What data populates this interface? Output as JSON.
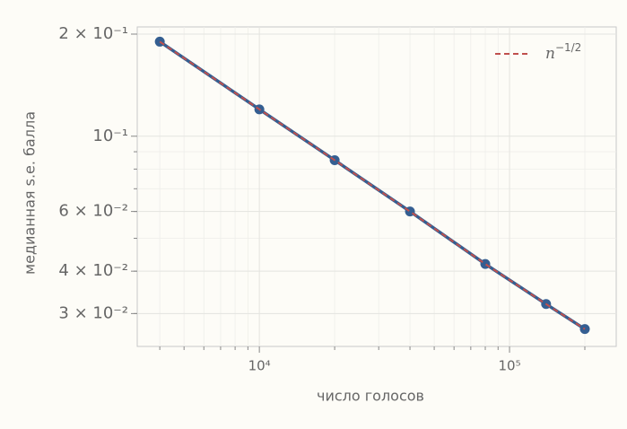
{
  "chart_data": {
    "type": "line",
    "xlabel": "число голосов",
    "ylabel": "медианная s.e. балла",
    "x": [
      4000,
      10000,
      20000,
      40000,
      80000,
      140000,
      200000
    ],
    "series": [
      {
        "color": "#345e91",
        "style": "solid",
        "markers": true,
        "values": [
          0.19,
          0.12,
          0.085,
          0.06,
          0.042,
          0.032,
          0.027
        ]
      },
      {
        "name": "n−1/2",
        "color": "#c0504d",
        "style": "dashed",
        "markers": false,
        "values": [
          0.19,
          0.12,
          0.085,
          0.06,
          0.042,
          0.032,
          0.027
        ]
      }
    ],
    "xscale": "log",
    "yscale": "log",
    "xlim": [
      3250,
      267000
    ],
    "ylim": [
      0.024,
      0.21
    ],
    "xticks": [
      {
        "value": 10000,
        "label": "10⁴"
      },
      {
        "value": 100000,
        "label": "10⁵"
      }
    ],
    "yticks": [
      {
        "value": 0.2,
        "label": "2 × 10⁻¹"
      },
      {
        "value": 0.1,
        "label": "10⁻¹"
      },
      {
        "value": 0.06,
        "label": "6 × 10⁻²"
      },
      {
        "value": 0.04,
        "label": "4 × 10⁻²"
      },
      {
        "value": 0.03,
        "label": "3 × 10⁻²"
      }
    ],
    "xminor": [
      4000,
      5000,
      6000,
      7000,
      8000,
      9000,
      20000,
      30000,
      40000,
      50000,
      60000,
      70000,
      80000,
      90000,
      200000
    ],
    "yminor": [
      0.03,
      0.04,
      0.05,
      0.06,
      0.07,
      0.08,
      0.09
    ],
    "grid": true,
    "legend": "upper right"
  }
}
